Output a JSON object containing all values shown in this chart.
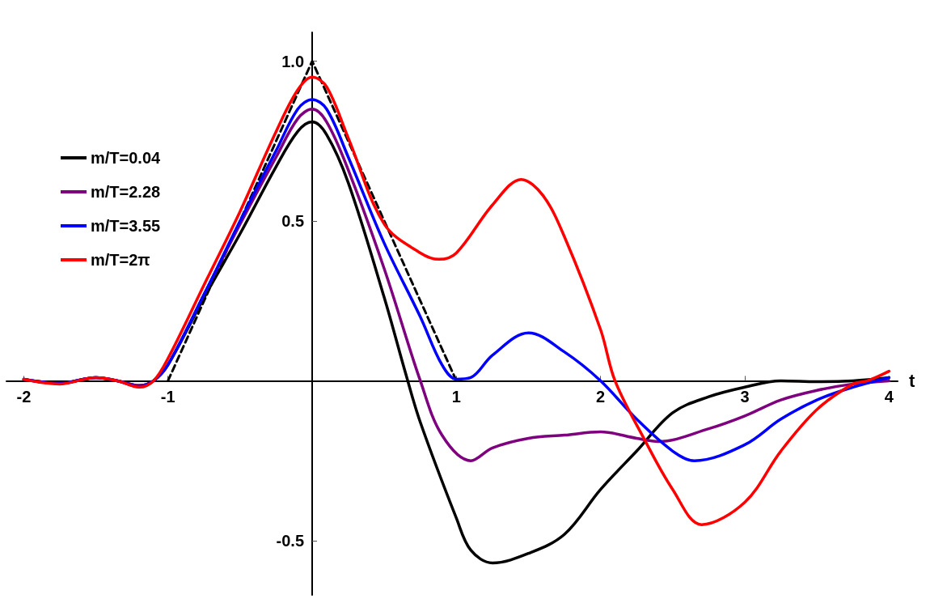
{
  "chart_data": {
    "type": "line",
    "xlabel": "t",
    "xlim": [
      -2.12,
      4.06
    ],
    "ylim": [
      -0.67,
      1.09
    ],
    "xticks": [
      -2,
      -1,
      1,
      2,
      3,
      4
    ],
    "yticks": [
      -0.5,
      0.5,
      {
        "value": 1,
        "label": "1.0"
      }
    ],
    "grid": false,
    "legend": "left",
    "marker": "none",
    "series": [
      {
        "name": "m/T=0.04",
        "color": "#000000",
        "x": [
          -2,
          -1.75,
          -1.5,
          -1.35,
          -1.2,
          -1.1,
          -1,
          -0.75,
          -0.5,
          -0.25,
          -0.1,
          0,
          0.1,
          0.25,
          0.5,
          0.65,
          0.75,
          1,
          1.1,
          1.25,
          1.5,
          1.75,
          2,
          2.25,
          2.5,
          2.75,
          3,
          3.25,
          3.5,
          3.75,
          4
        ],
        "values": [
          0.005,
          -0.008,
          0.01,
          0,
          -0.015,
          0,
          0.05,
          0.26,
          0.46,
          0.67,
          0.78,
          0.81,
          0.77,
          0.62,
          0.26,
          0.02,
          -0.13,
          -0.43,
          -0.53,
          -0.57,
          -0.54,
          -0.48,
          -0.34,
          -0.22,
          -0.1,
          -0.05,
          -0.02,
          0,
          -0.003,
          0,
          0.01
        ]
      },
      {
        "name": "m/T=2.28",
        "color": "#7f007f",
        "x": [
          -2,
          -1.75,
          -1.5,
          -1.35,
          -1.2,
          -1.1,
          -1,
          -0.75,
          -0.5,
          -0.25,
          -0.1,
          0,
          0.1,
          0.25,
          0.5,
          0.75,
          0.9,
          1.1,
          1.25,
          1.5,
          1.75,
          2,
          2.25,
          2.4,
          2.75,
          3,
          3.25,
          3.5,
          3.75,
          4
        ],
        "values": [
          0.005,
          -0.008,
          0.01,
          0,
          -0.015,
          0,
          0.05,
          0.27,
          0.49,
          0.7,
          0.82,
          0.85,
          0.81,
          0.66,
          0.35,
          0,
          -0.17,
          -0.25,
          -0.21,
          -0.18,
          -0.17,
          -0.16,
          -0.18,
          -0.19,
          -0.15,
          -0.11,
          -0.06,
          -0.03,
          -0.01,
          0
        ]
      },
      {
        "name": "m/T=3.55",
        "color": "#0000ff",
        "x": [
          -2,
          -1.75,
          -1.5,
          -1.35,
          -1.2,
          -1.1,
          -1,
          -0.75,
          -0.5,
          -0.25,
          -0.1,
          0,
          0.1,
          0.25,
          0.5,
          0.75,
          0.9,
          1,
          1.1,
          1.25,
          1.5,
          1.75,
          2,
          2.25,
          2.5,
          2.65,
          3,
          3.25,
          3.5,
          3.75,
          4
        ],
        "values": [
          0.005,
          -0.008,
          0.01,
          0,
          -0.018,
          0,
          0.05,
          0.27,
          0.5,
          0.72,
          0.85,
          0.88,
          0.85,
          0.7,
          0.43,
          0.2,
          0.05,
          0.005,
          0.01,
          0.08,
          0.15,
          0.09,
          0,
          -0.12,
          -0.22,
          -0.25,
          -0.2,
          -0.12,
          -0.06,
          -0.02,
          0.01
        ]
      },
      {
        "name": "m/T=2π",
        "color": "#ff0000",
        "x": [
          -2,
          -1.75,
          -1.5,
          -1.35,
          -1.2,
          -1.1,
          -1,
          -0.75,
          -0.5,
          -0.25,
          -0.1,
          0,
          0.1,
          0.25,
          0.5,
          0.75,
          0.88,
          1,
          1.25,
          1.45,
          1.6,
          1.75,
          2,
          2.1,
          2.3,
          2.5,
          2.7,
          3,
          3.25,
          3.5,
          3.75,
          3.85,
          4
        ],
        "values": [
          0.005,
          -0.01,
          0.01,
          0,
          -0.02,
          0,
          0.07,
          0.3,
          0.53,
          0.78,
          0.91,
          0.95,
          0.92,
          0.76,
          0.49,
          0.4,
          0.38,
          0.4,
          0.55,
          0.63,
          0.58,
          0.45,
          0.16,
          0,
          -0.18,
          -0.34,
          -0.45,
          -0.38,
          -0.22,
          -0.09,
          -0.01,
          0,
          0.03
        ]
      },
      {
        "color": "#000000",
        "line_style": "dashed",
        "x": [
          -1,
          0,
          1
        ],
        "values": [
          0,
          1,
          0
        ]
      }
    ]
  }
}
